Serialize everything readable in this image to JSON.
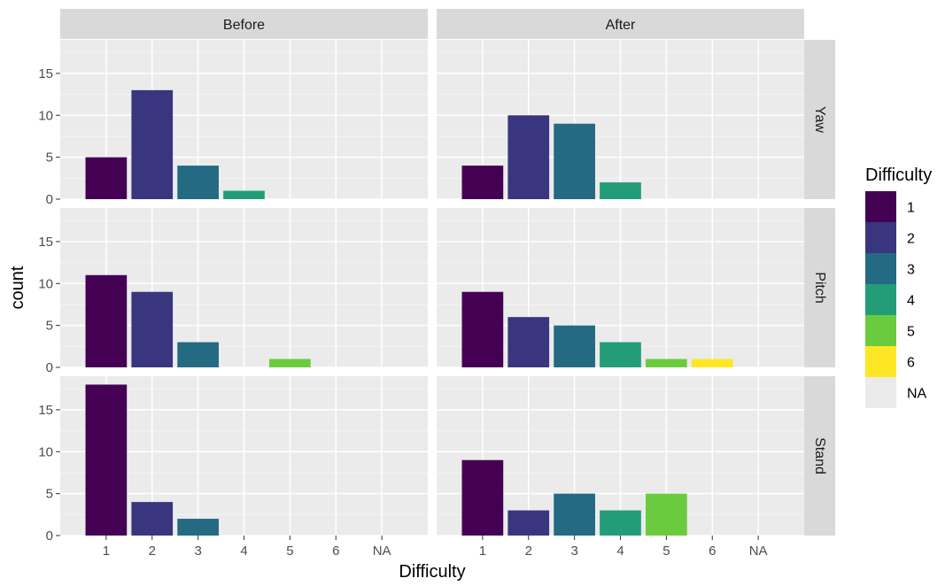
{
  "chart_data": {
    "type": "bar",
    "facet_cols": [
      "Before",
      "After"
    ],
    "facet_rows": [
      "Yaw",
      "Pitch",
      "Stand"
    ],
    "categories": [
      "1",
      "2",
      "3",
      "4",
      "5",
      "6",
      "NA"
    ],
    "xlabel": "Difficulty",
    "ylabel": "count",
    "y_ticks": [
      0,
      5,
      10,
      15
    ],
    "ylim": [
      0,
      19
    ],
    "legend": {
      "title": "Difficulty",
      "placement": "right",
      "items": [
        {
          "label": "1",
          "color": "#440154"
        },
        {
          "label": "2",
          "color": "#39357F"
        },
        {
          "label": "3",
          "color": "#236A82"
        },
        {
          "label": "4",
          "color": "#229D78"
        },
        {
          "label": "5",
          "color": "#6BCB3E"
        },
        {
          "label": "6",
          "color": "#FDE725"
        },
        {
          "label": "NA",
          "color": "#EBEBEB"
        }
      ]
    },
    "panels": [
      {
        "row": "Yaw",
        "col": "Before",
        "values": [
          5,
          13,
          4,
          1,
          0,
          0,
          0
        ]
      },
      {
        "row": "Yaw",
        "col": "After",
        "values": [
          4,
          10,
          9,
          2,
          0,
          0,
          0
        ]
      },
      {
        "row": "Pitch",
        "col": "Before",
        "values": [
          11,
          9,
          3,
          0,
          1,
          0,
          0
        ]
      },
      {
        "row": "Pitch",
        "col": "After",
        "values": [
          9,
          6,
          5,
          3,
          1,
          1,
          0
        ]
      },
      {
        "row": "Stand",
        "col": "Before",
        "values": [
          18,
          4,
          2,
          0,
          0,
          0,
          0
        ]
      },
      {
        "row": "Stand",
        "col": "After",
        "values": [
          9,
          3,
          5,
          3,
          5,
          0,
          0
        ]
      }
    ],
    "grid": true
  }
}
